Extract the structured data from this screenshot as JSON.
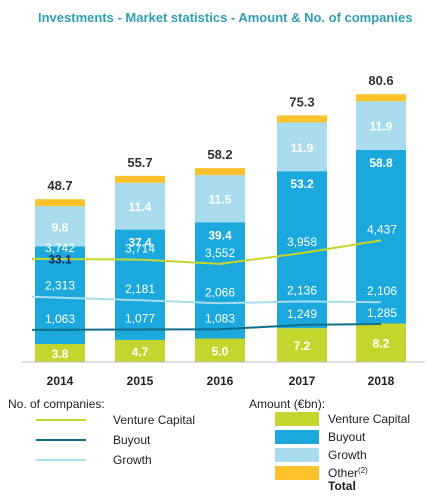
{
  "chart_data": {
    "type": "bar",
    "title": "Investments - Market statistics - Amount & No. of companies",
    "categories": [
      "2014",
      "2015",
      "2016",
      "2017",
      "2018"
    ],
    "series": [
      {
        "name": "Venture Capital",
        "values": [
          3.8,
          4.7,
          5.0,
          7.2,
          8.2
        ],
        "color": "#c5d52d"
      },
      {
        "name": "Buyout",
        "values": [
          33.1,
          37.4,
          39.4,
          53.2,
          58.8
        ],
        "color": "#1ba8dc"
      },
      {
        "name": "Growth",
        "values": [
          9.8,
          11.4,
          11.5,
          11.9,
          11.9
        ],
        "color": "#a9dcec"
      },
      {
        "name": "Other",
        "values": [
          2.0,
          2.2,
          2.3,
          3.0,
          1.7
        ],
        "color": "#fbc22b"
      }
    ],
    "totals": [
      48.7,
      55.7,
      58.2,
      75.3,
      80.6
    ],
    "total_labels": [
      "48.7",
      "55.7",
      "58.2",
      "75.3",
      "80.6"
    ],
    "amount_labels": {
      "Venture Capital": [
        "3.8",
        "4.7",
        "5.0",
        "7.2",
        "8.2"
      ],
      "Buyout": [
        "33.1",
        "37.4",
        "39.4",
        "53.2",
        "58.8"
      ],
      "Growth": [
        "9.8",
        "11.4",
        "11.5",
        "11.9",
        "11.9"
      ]
    },
    "company_counts": [
      {
        "name": "Venture Capital",
        "values": [
          3742,
          3714,
          3552,
          3958,
          4437
        ],
        "labels": [
          "3,742",
          "3,714",
          "3,552",
          "3,958",
          "4,437"
        ],
        "color": "#c5d52d"
      },
      {
        "name": "Growth",
        "values": [
          2313,
          2181,
          2066,
          2136,
          2106
        ],
        "labels": [
          "2,313",
          "2,181",
          "2,066",
          "2,136",
          "2,106"
        ],
        "color": "#a9dcec"
      },
      {
        "name": "Buyout",
        "values": [
          1063,
          1077,
          1083,
          1249,
          1285
        ],
        "labels": [
          "1,063",
          "1,077",
          "1,083",
          "1,249",
          "1,285"
        ],
        "color": "#0f6f8a"
      }
    ],
    "legend": {
      "companies_title": "No. of companies:",
      "companies_items": [
        {
          "label": "Venture Capital",
          "color": "#c5d52d"
        },
        {
          "label": "Buyout",
          "color": "#0f6f8a"
        },
        {
          "label": "Growth",
          "color": "#a9dcec"
        }
      ],
      "amount_title": "Amount (€bn):",
      "amount_items": [
        {
          "label": "Venture Capital",
          "color": "#c5d52d"
        },
        {
          "label": "Buyout",
          "color": "#1ba8dc"
        },
        {
          "label": "Growth",
          "color": "#a9dcec"
        },
        {
          "label": "Other",
          "superscript": "(2)",
          "color": "#fbc22b"
        }
      ],
      "total_label": "Total",
      "placement": "bottom"
    },
    "title_color": "#2f9fb4"
  }
}
